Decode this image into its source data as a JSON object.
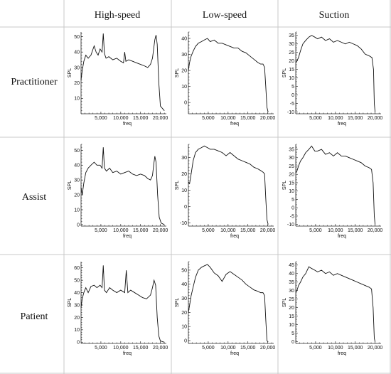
{
  "columns": [
    "High-speed",
    "Low-speed",
    "Suction"
  ],
  "rows": [
    "Practitioner",
    "Assist",
    "Patient"
  ],
  "chart_data": [
    {
      "type": "line",
      "row": "Practitioner",
      "column": "High-speed",
      "xlabel": "freq",
      "ylabel": "SPL",
      "xlim": [
        0,
        21500
      ],
      "ylim": [
        0,
        53
      ],
      "yticks": [
        10,
        20,
        30,
        40,
        50
      ],
      "xticks": [
        5000,
        10000,
        15000,
        20000
      ],
      "xtick_labels": [
        "5,000",
        "10,000",
        "15,000",
        "20,000"
      ],
      "x": [
        0,
        300,
        700,
        1200,
        1800,
        2500,
        3300,
        3800,
        4300,
        4800,
        5300,
        5600,
        5900,
        6300,
        7000,
        8000,
        9000,
        10000,
        10700,
        11000,
        11300,
        12000,
        13000,
        14000,
        15000,
        16000,
        16800,
        17500,
        18000,
        18300,
        18600,
        18900,
        19200,
        19600,
        20000,
        21000
      ],
      "y": [
        22,
        28,
        34,
        38,
        36,
        38,
        44,
        40,
        38,
        42,
        40,
        52,
        39,
        36,
        37,
        35,
        36,
        34,
        33,
        40,
        34,
        35,
        34,
        33,
        32,
        31,
        30,
        32,
        36,
        42,
        48,
        51,
        45,
        20,
        5,
        2
      ]
    },
    {
      "type": "line",
      "row": "Practitioner",
      "column": "Low-speed",
      "xlabel": "freq",
      "ylabel": "SPL",
      "xlim": [
        0,
        21500
      ],
      "ylim": [
        -7,
        44
      ],
      "yticks": [
        0,
        10,
        20,
        30,
        40
      ],
      "xticks": [
        5000,
        10000,
        15000,
        20000
      ],
      "xtick_labels": [
        "5,000",
        "10,000",
        "15,000",
        "20,000"
      ],
      "x": [
        0,
        300,
        700,
        1200,
        1800,
        2500,
        3300,
        4000,
        4800,
        5500,
        6500,
        7500,
        8500,
        9500,
        10500,
        11500,
        12500,
        13500,
        14500,
        15500,
        16500,
        17500,
        18200,
        18800,
        19200,
        19500,
        19800,
        20100
      ],
      "y": [
        20,
        25,
        29,
        32,
        35,
        37,
        38,
        39,
        40,
        38,
        39,
        37,
        37,
        36,
        35,
        34,
        34,
        32,
        31,
        29,
        27,
        25,
        24,
        24,
        22,
        10,
        -3,
        -6
      ]
    },
    {
      "type": "line",
      "row": "Practitioner",
      "column": "Suction",
      "xlabel": "freq",
      "ylabel": "SPL",
      "xlim": [
        0,
        21500
      ],
      "ylim": [
        -11,
        37
      ],
      "yticks": [
        -10,
        -5,
        0,
        5,
        10,
        15,
        20,
        25,
        30,
        35
      ],
      "xticks": [
        5000,
        10000,
        15000,
        20000
      ],
      "xtick_labels": [
        "5,000",
        "10,000",
        "15,000",
        "20,000"
      ],
      "x": [
        0,
        300,
        700,
        1200,
        1800,
        2500,
        3300,
        4000,
        4800,
        5500,
        6500,
        7500,
        8500,
        9500,
        10500,
        11500,
        12500,
        13500,
        14500,
        15500,
        16500,
        17500,
        18500,
        19200,
        19600,
        19800,
        20000
      ],
      "y": [
        19,
        20,
        22,
        26,
        30,
        32,
        34,
        35,
        34,
        33,
        34,
        32,
        33,
        31,
        32,
        31,
        30,
        31,
        30,
        29,
        27,
        24,
        23,
        22,
        15,
        -5,
        -10
      ]
    },
    {
      "type": "line",
      "row": "Assist",
      "column": "High-speed",
      "xlabel": "freq",
      "ylabel": "SPL",
      "xlim": [
        0,
        21500
      ],
      "ylim": [
        -1,
        54
      ],
      "yticks": [
        0,
        10,
        20,
        30,
        40,
        50
      ],
      "xticks": [
        5000,
        10000,
        15000,
        20000
      ],
      "xtick_labels": [
        "5,000",
        "10,000",
        "15,000",
        "20,000"
      ],
      "x": [
        0,
        300,
        700,
        1200,
        1800,
        2500,
        3300,
        4000,
        4800,
        5300,
        5600,
        5900,
        6400,
        7200,
        8000,
        9000,
        10000,
        11000,
        12000,
        13000,
        14000,
        15000,
        16000,
        16800,
        17500,
        18000,
        18300,
        18600,
        18900,
        19300,
        19700,
        20200,
        21000
      ],
      "y": [
        25,
        20,
        28,
        35,
        38,
        40,
        42,
        40,
        40,
        38,
        52,
        38,
        36,
        38,
        35,
        36,
        34,
        35,
        36,
        34,
        33,
        34,
        33,
        31,
        30,
        33,
        40,
        46,
        42,
        20,
        5,
        1,
        0
      ]
    },
    {
      "type": "line",
      "row": "Assist",
      "column": "Low-speed",
      "xlabel": "freq",
      "ylabel": "SPL",
      "xlim": [
        0,
        21500
      ],
      "ylim": [
        -12,
        38
      ],
      "yticks": [
        -10,
        0,
        10,
        20,
        30
      ],
      "xticks": [
        5000,
        10000,
        15000,
        20000
      ],
      "xtick_labels": [
        "5,000",
        "10,000",
        "15,000",
        "20,000"
      ],
      "x": [
        0,
        300,
        700,
        1200,
        1800,
        2500,
        3300,
        4000,
        4800,
        5500,
        6500,
        7500,
        8500,
        9500,
        10500,
        11500,
        12500,
        13500,
        14500,
        15500,
        16500,
        17500,
        18200,
        18800,
        19200,
        19500,
        19800,
        20100
      ],
      "y": [
        15,
        14,
        20,
        28,
        33,
        35,
        36,
        37,
        36,
        35,
        35,
        34,
        33,
        31,
        33,
        31,
        29,
        28,
        27,
        26,
        24,
        23,
        22,
        21,
        20,
        5,
        -8,
        -11
      ]
    },
    {
      "type": "line",
      "row": "Assist",
      "column": "Suction",
      "xlabel": "freq",
      "ylabel": "SPL",
      "xlim": [
        0,
        21500
      ],
      "ylim": [
        -11,
        38
      ],
      "yticks": [
        -10,
        -5,
        0,
        5,
        10,
        15,
        20,
        25,
        30,
        35
      ],
      "xticks": [
        5000,
        10000,
        15000,
        20000
      ],
      "xtick_labels": [
        "5,000",
        "10,000",
        "15,000",
        "20,000"
      ],
      "x": [
        0,
        300,
        700,
        1200,
        1800,
        2500,
        3300,
        4000,
        4800,
        5500,
        6500,
        7500,
        8500,
        9500,
        10500,
        11500,
        12500,
        13500,
        14500,
        15500,
        16500,
        17500,
        18500,
        19100,
        19500,
        19800,
        20000
      ],
      "y": [
        21,
        22,
        25,
        28,
        30,
        33,
        35,
        37,
        34,
        34,
        35,
        32,
        33,
        31,
        33,
        31,
        31,
        30,
        29,
        28,
        27,
        25,
        24,
        23,
        15,
        -5,
        -10
      ]
    },
    {
      "type": "line",
      "row": "Patient",
      "column": "High-speed",
      "xlabel": "freq",
      "ylabel": "SPL",
      "xlim": [
        0,
        21500
      ],
      "ylim": [
        -1,
        65
      ],
      "yticks": [
        0,
        10,
        20,
        30,
        40,
        50,
        60
      ],
      "xticks": [
        5000,
        10000,
        15000,
        20000
      ],
      "xtick_labels": [
        "5,000",
        "10,000",
        "15,000",
        "20,000"
      ],
      "x": [
        0,
        300,
        700,
        1200,
        1800,
        2500,
        3300,
        4000,
        4800,
        5300,
        5600,
        5900,
        6400,
        7200,
        8000,
        9000,
        10000,
        11000,
        11400,
        11800,
        12500,
        13500,
        14500,
        15500,
        16500,
        17500,
        18000,
        18400,
        18800,
        19200,
        19600,
        20000,
        21000
      ],
      "y": [
        28,
        35,
        40,
        44,
        40,
        45,
        46,
        44,
        46,
        44,
        62,
        42,
        40,
        44,
        42,
        40,
        42,
        40,
        58,
        40,
        42,
        40,
        38,
        36,
        35,
        38,
        44,
        50,
        46,
        20,
        5,
        1,
        0
      ]
    },
    {
      "type": "line",
      "row": "Patient",
      "column": "Low-speed",
      "xlabel": "freq",
      "ylabel": "SPL",
      "xlim": [
        0,
        21500
      ],
      "ylim": [
        -2,
        56
      ],
      "yticks": [
        0,
        10,
        20,
        30,
        40,
        50
      ],
      "xticks": [
        5000,
        10000,
        15000,
        20000
      ],
      "xtick_labels": [
        "5,000",
        "10,000",
        "15,000",
        "20,000"
      ],
      "x": [
        0,
        300,
        700,
        1200,
        1800,
        2500,
        3300,
        4000,
        4800,
        5500,
        6500,
        7500,
        8500,
        9500,
        10500,
        11500,
        12500,
        13500,
        14500,
        15500,
        16500,
        17500,
        18200,
        18800,
        19200,
        19500,
        19800,
        20100
      ],
      "y": [
        20,
        25,
        32,
        38,
        45,
        50,
        52,
        53,
        54,
        52,
        48,
        46,
        42,
        47,
        49,
        47,
        45,
        43,
        40,
        38,
        36,
        35,
        34,
        34,
        32,
        15,
        0,
        -1
      ]
    },
    {
      "type": "line",
      "row": "Patient",
      "column": "Suction",
      "xlabel": "freq",
      "ylabel": "SPL",
      "xlim": [
        0,
        21500
      ],
      "ylim": [
        -1,
        47
      ],
      "yticks": [
        0,
        5,
        10,
        15,
        20,
        25,
        30,
        35,
        40,
        45
      ],
      "xticks": [
        5000,
        10000,
        15000,
        20000
      ],
      "xtick_labels": [
        "5,000",
        "10,000",
        "15,000",
        "20,000"
      ],
      "x": [
        0,
        300,
        700,
        1200,
        1800,
        2500,
        3300,
        4000,
        4800,
        5500,
        6500,
        7500,
        8500,
        9500,
        10500,
        11500,
        12500,
        13500,
        14500,
        15500,
        16500,
        17500,
        18500,
        19100,
        19500,
        19800,
        20000
      ],
      "y": [
        29,
        30,
        33,
        35,
        38,
        40,
        44,
        43,
        42,
        41,
        42,
        40,
        41,
        39,
        40,
        39,
        38,
        37,
        36,
        35,
        34,
        33,
        32,
        31,
        20,
        2,
        0
      ]
    }
  ]
}
